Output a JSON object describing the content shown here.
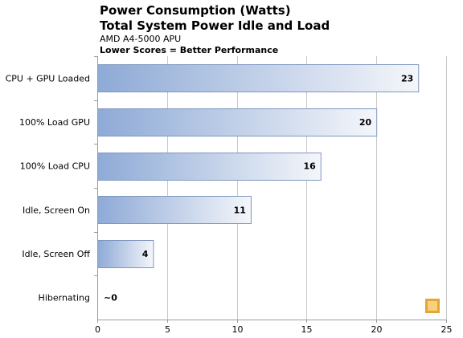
{
  "title": "Power Consumption (Watts)",
  "subtitle": "Total System Power Idle and Load",
  "device": "AMD A4-5000 APU",
  "note": "Lower Scores = Better Performance",
  "colors": {
    "bar_left": "#8eaad6",
    "bar_right": "#f4f6fa",
    "bar_stroke": "#7f97bf",
    "grid": "#c8c8c8",
    "axis": "#9c9c9c"
  },
  "chart_data": {
    "type": "bar",
    "orientation": "horizontal",
    "categories": [
      "CPU + GPU Loaded",
      "100% Load GPU",
      "100% Load CPU",
      "Idle, Screen On",
      "Idle, Screen Off",
      "Hibernating"
    ],
    "values": [
      23,
      20,
      16,
      11,
      4,
      0
    ],
    "data_labels": [
      "23",
      "20",
      "16",
      "11",
      "4",
      "~0"
    ],
    "xlim": [
      0,
      25
    ],
    "xticks": [
      0,
      5,
      10,
      15,
      20,
      25
    ],
    "grid": true,
    "title": "Power Consumption (Watts)"
  }
}
